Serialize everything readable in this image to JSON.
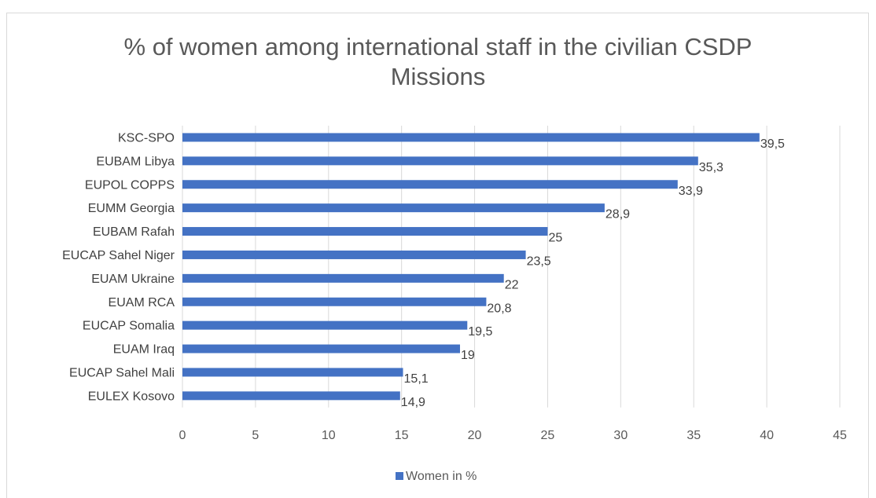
{
  "chart_data": {
    "type": "bar",
    "orientation": "horizontal",
    "title": "% of women among international staff in the civilian CSDP Missions",
    "title_lines": [
      "% of women among international staff in the civilian CSDP",
      "Missions"
    ],
    "categories": [
      "KSC-SPO",
      "EUBAM Libya",
      "EUPOL COPPS",
      "EUMM Georgia",
      "EUBAM Rafah",
      "EUCAP Sahel Niger",
      "EUAM Ukraine",
      "EUAM RCA",
      "EUCAP Somalia",
      "EUAM Iraq",
      "EUCAP Sahel Mali",
      "EULEX Kosovo"
    ],
    "series": [
      {
        "name": "Women in %",
        "values": [
          39.5,
          35.3,
          33.9,
          28.9,
          25,
          23.5,
          22,
          20.8,
          19.5,
          19,
          15.1,
          14.9
        ],
        "labels": [
          "39,5",
          "35,3",
          "33,9",
          "28,9",
          "25",
          "23,5",
          "22",
          "20,8",
          "19,5",
          "19",
          "15,1",
          "14,9"
        ],
        "color": "#4472c4"
      }
    ],
    "xlim": [
      0,
      45
    ],
    "xticks": [
      0,
      5,
      10,
      15,
      20,
      25,
      30,
      35,
      40,
      45
    ],
    "xlabel": "",
    "ylabel": "",
    "grid": true,
    "legend_position": "bottom"
  }
}
